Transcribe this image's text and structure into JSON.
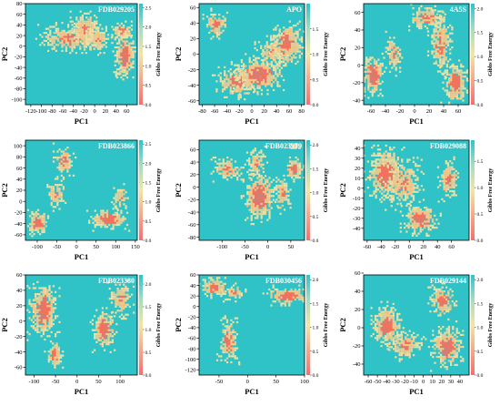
{
  "colors": {
    "background": "#2fc3c8",
    "colorbar_low": "#f56e6e",
    "colorbar_mid": "#f1e6a3",
    "colorbar_high": "#2fc3c8",
    "low_energy": "#f3715f",
    "mid_energy": "#f2c98d",
    "light_energy": "#ece0a6"
  },
  "chart_data": [
    {
      "type": "heatmap",
      "title": "FDB029205",
      "xlabel": "PC1",
      "ylabel": "PC2",
      "colorbar_label": "Gibbs Free Energy",
      "xlim": [
        -130,
        80
      ],
      "ylim": [
        -110,
        80
      ],
      "xticks": [
        -120,
        -100,
        -80,
        -60,
        -40,
        -20,
        0,
        20,
        40,
        60
      ],
      "yticks": [
        -100,
        -80,
        -60,
        -40,
        -20,
        0,
        20,
        40,
        60,
        80
      ],
      "cbar_range": [
        0,
        2.6
      ],
      "cbar_ticks": [
        0.0,
        0.5,
        1.0,
        1.5,
        2.0,
        2.5
      ],
      "basins": [
        {
          "x": -50,
          "y": 15,
          "sx": 28,
          "sy": 14,
          "depth": 0.8
        },
        {
          "x": -20,
          "y": 35,
          "sx": 14,
          "sy": 18,
          "depth": 0.75
        },
        {
          "x": 5,
          "y": 15,
          "sx": 12,
          "sy": 14,
          "depth": 0.7
        },
        {
          "x": 50,
          "y": 30,
          "sx": 9,
          "sy": 10,
          "depth": 0.95
        },
        {
          "x": 55,
          "y": -15,
          "sx": 10,
          "sy": 22,
          "depth": 1.0
        },
        {
          "x": 48,
          "y": -45,
          "sx": 6,
          "sy": 6,
          "depth": 0.55
        }
      ]
    },
    {
      "type": "heatmap",
      "title": "APO",
      "xlabel": "PC1",
      "ylabel": "PC2",
      "colorbar_label": "Gibbs Free Energy",
      "xlim": [
        -85,
        85
      ],
      "ylim": [
        -65,
        65
      ],
      "xticks": [
        -80,
        -60,
        -40,
        -20,
        0,
        20,
        40,
        60,
        80
      ],
      "yticks": [
        -60,
        -40,
        -20,
        0,
        20,
        40,
        60
      ],
      "cbar_range": [
        0,
        2.0
      ],
      "cbar_ticks": [
        0.0,
        0.5,
        1.0,
        1.5
      ],
      "basins": [
        {
          "x": -60,
          "y": 40,
          "sx": 9,
          "sy": 9,
          "depth": 0.85
        },
        {
          "x": -25,
          "y": -35,
          "sx": 18,
          "sy": 10,
          "depth": 0.85
        },
        {
          "x": 10,
          "y": -25,
          "sx": 20,
          "sy": 12,
          "depth": 1.0
        },
        {
          "x": 30,
          "y": 5,
          "sx": 12,
          "sy": 10,
          "depth": 0.7
        },
        {
          "x": 55,
          "y": 15,
          "sx": 14,
          "sy": 14,
          "depth": 0.95
        }
      ]
    },
    {
      "type": "heatmap",
      "title": "4A5S",
      "xlabel": "PC1",
      "ylabel": "PC2",
      "colorbar_label": "Gibbs Free Energy",
      "xlim": [
        -70,
        75
      ],
      "ylim": [
        -45,
        70
      ],
      "xticks": [
        -60,
        -40,
        -20,
        0,
        20,
        40,
        60
      ],
      "yticks": [
        -40,
        -20,
        0,
        20,
        40,
        60
      ],
      "cbar_range": [
        0,
        2.1
      ],
      "cbar_ticks": [
        0.0,
        0.5,
        1.0,
        1.5,
        2.0
      ],
      "basins": [
        {
          "x": -58,
          "y": -10,
          "sx": 8,
          "sy": 12,
          "depth": 1.0
        },
        {
          "x": -30,
          "y": 15,
          "sx": 6,
          "sy": 12,
          "depth": 0.7
        },
        {
          "x": 15,
          "y": 55,
          "sx": 12,
          "sy": 7,
          "depth": 0.85
        },
        {
          "x": 35,
          "y": 25,
          "sx": 8,
          "sy": 18,
          "depth": 0.8
        },
        {
          "x": 55,
          "y": -20,
          "sx": 9,
          "sy": 12,
          "depth": 0.95
        }
      ]
    },
    {
      "type": "heatmap",
      "title": "FDB023866",
      "xlabel": "PC1",
      "ylabel": "PC2",
      "colorbar_label": "Gibbs Free Energy",
      "xlim": [
        -130,
        155
      ],
      "ylim": [
        -70,
        110
      ],
      "xticks": [
        -100,
        -50,
        0,
        50,
        100,
        150
      ],
      "yticks": [
        -60,
        -40,
        -20,
        0,
        20,
        40,
        60,
        80,
        100
      ],
      "cbar_range": [
        0,
        2.6
      ],
      "cbar_ticks": [
        0.0,
        0.5,
        1.0,
        1.5,
        2.0,
        2.5
      ],
      "basins": [
        {
          "x": -100,
          "y": -38,
          "sx": 14,
          "sy": 11,
          "depth": 1.0
        },
        {
          "x": -55,
          "y": 15,
          "sx": 12,
          "sy": 14,
          "depth": 0.7
        },
        {
          "x": -35,
          "y": 75,
          "sx": 14,
          "sy": 14,
          "depth": 0.8
        },
        {
          "x": 80,
          "y": -30,
          "sx": 25,
          "sy": 10,
          "depth": 0.95
        },
        {
          "x": 110,
          "y": 10,
          "sx": 10,
          "sy": 12,
          "depth": 0.7
        }
      ]
    },
    {
      "type": "heatmap",
      "title": "FDB023919",
      "xlabel": "PC1",
      "ylabel": "PC2",
      "colorbar_label": "Gibbs Free Energy",
      "xlim": [
        -150,
        80
      ],
      "ylim": [
        -85,
        75
      ],
      "xticks": [
        -100,
        -50,
        0,
        50
      ],
      "yticks": [
        -80,
        -60,
        -40,
        -20,
        0,
        20,
        40,
        60
      ],
      "cbar_range": [
        0,
        2.1
      ],
      "cbar_ticks": [
        0.0,
        0.5,
        1.0,
        1.5,
        2.0
      ],
      "basins": [
        {
          "x": -90,
          "y": 30,
          "sx": 18,
          "sy": 10,
          "depth": 0.75
        },
        {
          "x": -25,
          "y": 40,
          "sx": 12,
          "sy": 12,
          "depth": 0.7
        },
        {
          "x": -20,
          "y": -15,
          "sx": 18,
          "sy": 20,
          "depth": 1.0
        },
        {
          "x": 30,
          "y": -10,
          "sx": 10,
          "sy": 15,
          "depth": 0.75
        },
        {
          "x": 55,
          "y": 30,
          "sx": 10,
          "sy": 10,
          "depth": 0.9
        },
        {
          "x": 60,
          "y": 68,
          "sx": 5,
          "sy": 4,
          "depth": 0.6
        }
      ]
    },
    {
      "type": "heatmap",
      "title": "FDB029088",
      "xlabel": "PC1",
      "ylabel": "PC2",
      "colorbar_label": "Gibbs Free Energy",
      "xlim": [
        -65,
        85
      ],
      "ylim": [
        -52,
        48
      ],
      "xticks": [
        -60,
        -40,
        -20,
        0,
        20,
        40,
        60
      ],
      "yticks": [
        -40,
        -30,
        -20,
        -10,
        0,
        10,
        20,
        30,
        40
      ],
      "cbar_range": [
        0,
        1.9
      ],
      "cbar_ticks": [
        0.0,
        0.5,
        1.0,
        1.5
      ],
      "basins": [
        {
          "x": -35,
          "y": 15,
          "sx": 14,
          "sy": 13,
          "depth": 1.0
        },
        {
          "x": -10,
          "y": 5,
          "sx": 14,
          "sy": 12,
          "depth": 0.75
        },
        {
          "x": 15,
          "y": -30,
          "sx": 13,
          "sy": 8,
          "depth": 0.95
        },
        {
          "x": 55,
          "y": 10,
          "sx": 7,
          "sy": 10,
          "depth": 0.85
        }
      ]
    },
    {
      "type": "heatmap",
      "title": "FDB023380",
      "xlabel": "PC1",
      "ylabel": "PC2",
      "colorbar_label": "Gibbs Free Energy",
      "xlim": [
        -120,
        140
      ],
      "ylim": [
        -70,
        60
      ],
      "xticks": [
        -100,
        -50,
        0,
        50,
        100
      ],
      "yticks": [
        -60,
        -40,
        -20,
        0,
        20,
        40,
        60
      ],
      "cbar_range": [
        0,
        2.2
      ],
      "cbar_ticks": [
        0.0,
        0.5,
        1.0,
        1.5,
        2.0
      ],
      "basins": [
        {
          "x": -80,
          "y": 15,
          "sx": 17,
          "sy": 18,
          "depth": 1.0
        },
        {
          "x": -55,
          "y": -42,
          "sx": 10,
          "sy": 10,
          "depth": 0.85
        },
        {
          "x": 60,
          "y": -10,
          "sx": 14,
          "sy": 14,
          "depth": 0.95
        },
        {
          "x": 100,
          "y": 30,
          "sx": 14,
          "sy": 12,
          "depth": 0.75
        }
      ]
    },
    {
      "type": "heatmap",
      "title": "FDB030456",
      "xlabel": "PC1",
      "ylabel": "PC2",
      "colorbar_label": "Gibbs Free Energy",
      "xlim": [
        -85,
        100
      ],
      "ylim": [
        -130,
        60
      ],
      "xticks": [
        -50,
        0,
        50,
        100
      ],
      "yticks": [
        -120,
        -100,
        -80,
        -60,
        -40,
        -20,
        0,
        20,
        40,
        60
      ],
      "cbar_range": [
        0,
        2.1
      ],
      "cbar_ticks": [
        0.0,
        0.5,
        1.0,
        1.5,
        2.0
      ],
      "basins": [
        {
          "x": -60,
          "y": 38,
          "sx": 12,
          "sy": 10,
          "depth": 0.95
        },
        {
          "x": -25,
          "y": 28,
          "sx": 10,
          "sy": 8,
          "depth": 0.7
        },
        {
          "x": 70,
          "y": 22,
          "sx": 20,
          "sy": 9,
          "depth": 1.0
        },
        {
          "x": -35,
          "y": -65,
          "sx": 9,
          "sy": 22,
          "depth": 0.85
        }
      ]
    },
    {
      "type": "heatmap",
      "title": "FDB029144",
      "xlabel": "PC1",
      "ylabel": "PC2",
      "colorbar_label": "Gibbs Free Energy",
      "xlim": [
        -65,
        50
      ],
      "ylim": [
        -52,
        58
      ],
      "xticks": [
        -60,
        -50,
        -40,
        -30,
        -20,
        -10,
        0,
        10,
        20,
        30,
        40
      ],
      "yticks": [
        -40,
        -20,
        0,
        20,
        40,
        60
      ],
      "cbar_range": [
        0,
        2.1
      ],
      "cbar_ticks": [
        0.0,
        0.5,
        1.0,
        1.5,
        2.0
      ],
      "basins": [
        {
          "x": -40,
          "y": 3,
          "sx": 8,
          "sy": 12,
          "depth": 1.0
        },
        {
          "x": -20,
          "y": -18,
          "sx": 10,
          "sy": 8,
          "depth": 0.75
        },
        {
          "x": 20,
          "y": 30,
          "sx": 7,
          "sy": 10,
          "depth": 0.9
        },
        {
          "x": 25,
          "y": -20,
          "sx": 9,
          "sy": 12,
          "depth": 0.95
        }
      ]
    }
  ]
}
